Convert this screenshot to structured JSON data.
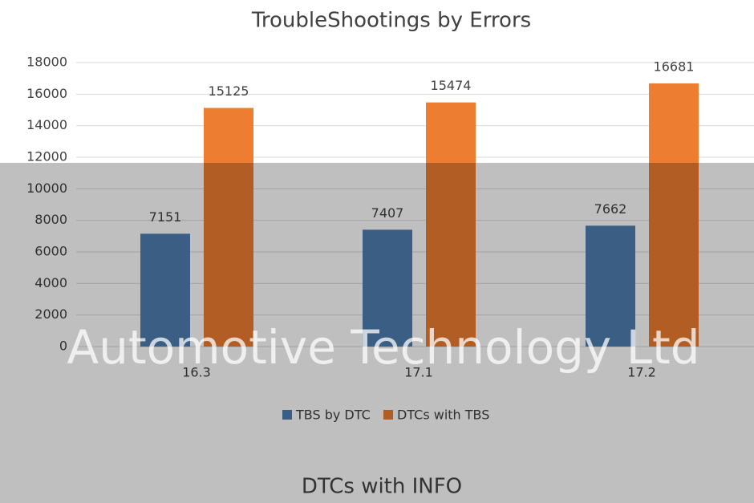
{
  "chart_data": {
    "type": "bar",
    "title": "TroubleShootings by Errors",
    "categories": [
      "16.3",
      "17.1",
      "17.2"
    ],
    "series": [
      {
        "name": "TBS by DTC",
        "color": "#4e7eb0",
        "values": [
          7151,
          7407,
          7662
        ]
      },
      {
        "name": "DTCs with TBS",
        "color": "#ed7d31",
        "values": [
          15125,
          15474,
          16681
        ]
      }
    ],
    "ylim": [
      0,
      18000
    ],
    "yticks": [
      0,
      2000,
      4000,
      6000,
      8000,
      10000,
      12000,
      14000,
      16000,
      18000
    ],
    "grid": true,
    "legend": "bottom",
    "annotations": [
      "Automotive Technology Ltd",
      "DTCs with INFO"
    ]
  }
}
